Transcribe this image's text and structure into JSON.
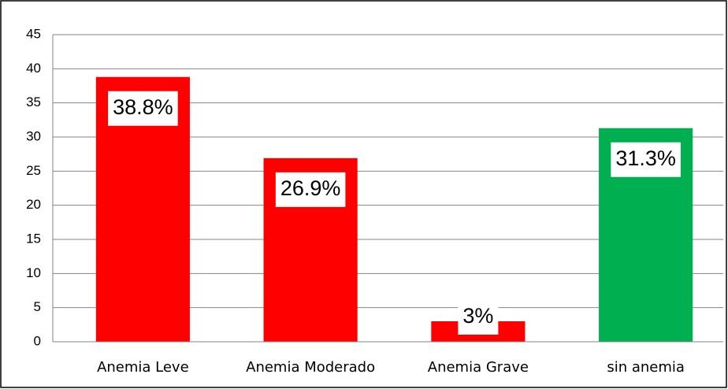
{
  "chart_data": {
    "type": "bar",
    "categories": [
      "Anemia Leve",
      "Anemia Moderado",
      "Anemia Grave",
      "sin anemia"
    ],
    "values": [
      38.8,
      26.9,
      3,
      31.3
    ],
    "value_labels": [
      "38.8%",
      "26.9%",
      "3%",
      "31.3%"
    ],
    "colors": [
      "#ff0000",
      "#ff0000",
      "#ff0000",
      "#00b050"
    ],
    "ylim": [
      0,
      45
    ],
    "yticks": [
      0,
      5,
      10,
      15,
      20,
      25,
      30,
      35,
      40,
      45
    ],
    "grid": true
  }
}
